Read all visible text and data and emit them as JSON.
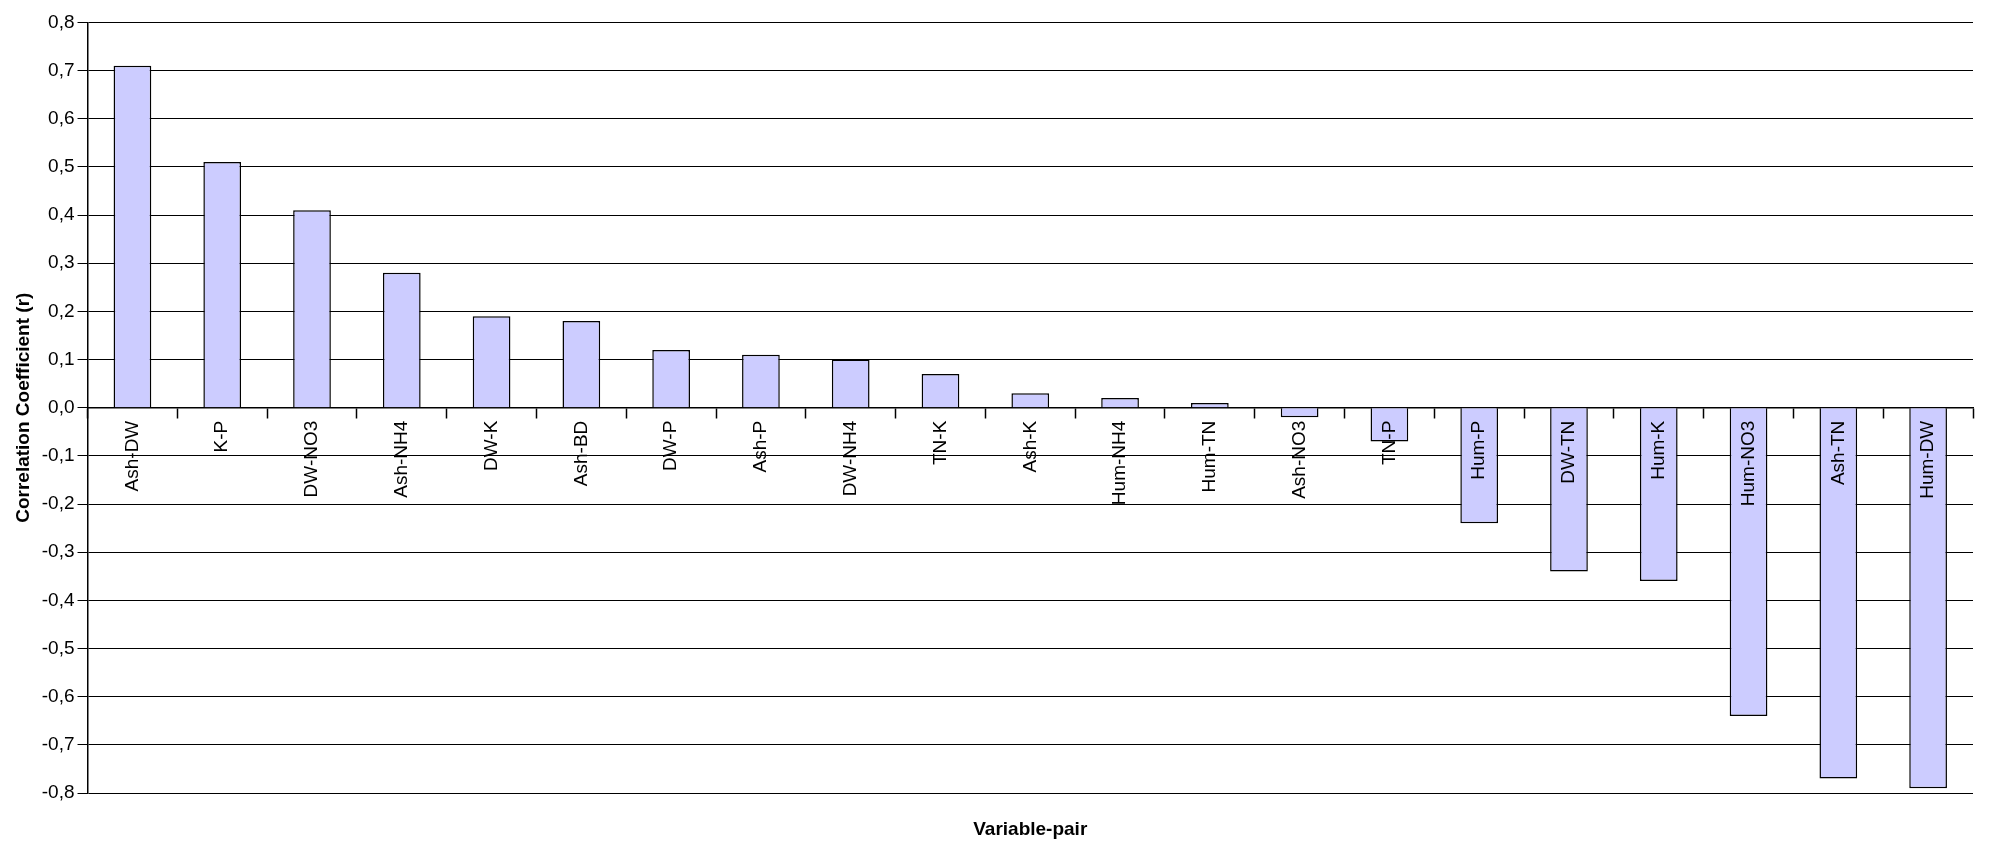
{
  "chart_data": {
    "type": "bar",
    "xlabel": "Variable-pair",
    "ylabel": "Correlation Coefficient (r)",
    "categories": [
      "Ash-DW",
      "K-P",
      "DW-NO3",
      "Ash-NH4",
      "DW-K",
      "Ash-BD",
      "DW-P",
      "Ash-P",
      "DW-NH4",
      "TN-K",
      "Ash-K",
      "Hum-NH4",
      "Hum-TN",
      "Ash-NO3",
      "TN-P",
      "Hum-P",
      "DW-TN",
      "Hum-K",
      "Hum-NO3",
      "Ash-TN",
      "Hum-DW"
    ],
    "values": [
      0.71,
      0.51,
      0.41,
      0.28,
      0.19,
      0.18,
      0.12,
      0.11,
      0.1,
      0.07,
      0.03,
      0.02,
      0.01,
      -0.02,
      -0.07,
      -0.24,
      -0.34,
      -0.36,
      -0.64,
      -0.77,
      -0.79
    ],
    "color": "#ccccff",
    "ylim": [
      -0.8,
      0.8
    ],
    "yticks": [
      {
        "value": -0.8,
        "label": "-0,8"
      },
      {
        "value": -0.7,
        "label": "-0,7"
      },
      {
        "value": -0.6,
        "label": "-0,6"
      },
      {
        "value": -0.5,
        "label": "-0,5"
      },
      {
        "value": -0.4,
        "label": "-0,4"
      },
      {
        "value": -0.3,
        "label": "-0,3"
      },
      {
        "value": -0.2,
        "label": "-0,2"
      },
      {
        "value": -0.1,
        "label": "-0,1"
      },
      {
        "value": 0,
        "label": "0,0"
      },
      {
        "value": 0.1,
        "label": "0,1"
      },
      {
        "value": 0.2,
        "label": "0,2"
      },
      {
        "value": 0.3,
        "label": "0,3"
      },
      {
        "value": 0.4,
        "label": "0,4"
      },
      {
        "value": 0.5,
        "label": "0,5"
      },
      {
        "value": 0.6,
        "label": "0,6"
      },
      {
        "value": 0.7,
        "label": "0,7"
      },
      {
        "value": 0.8,
        "label": "0,8"
      }
    ],
    "grid": "y"
  }
}
